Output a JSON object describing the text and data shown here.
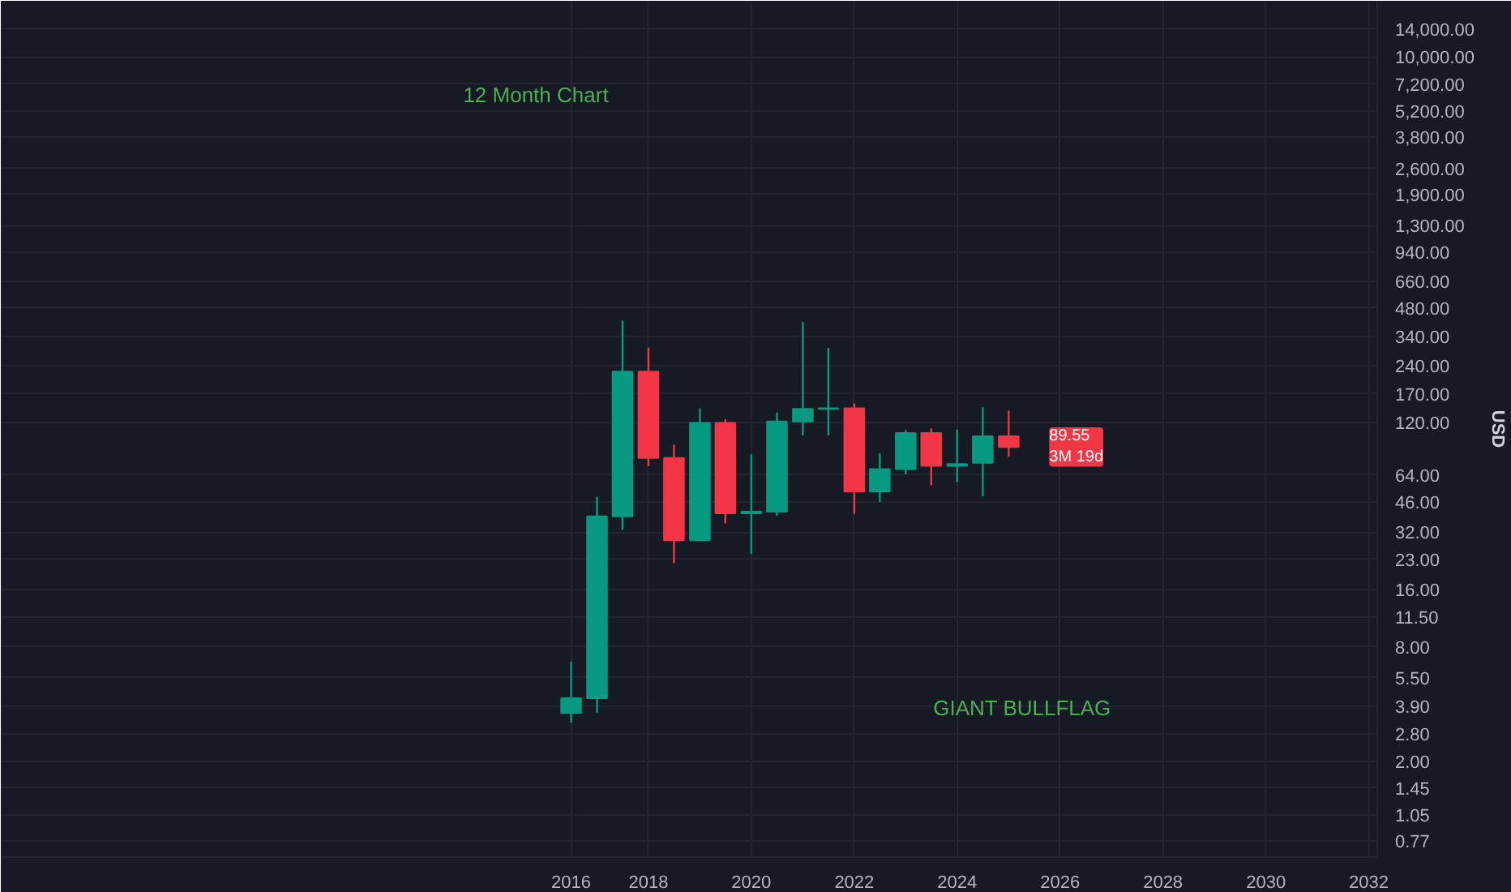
{
  "chart_data": {
    "type": "candlestick",
    "ylabel": "USD",
    "x": [
      "2016-07",
      "2017-01",
      "2017-07",
      "2018-01",
      "2018-07",
      "2019-01",
      "2019-07",
      "2020-01",
      "2020-07",
      "2021-01",
      "2021-07",
      "2022-01",
      "2022-07",
      "2023-01",
      "2023-07",
      "2024-01",
      "2024-07",
      "2025-01"
    ],
    "ohlc": [
      [
        3.6,
        6.7,
        3.2,
        4.3
      ],
      [
        4.3,
        49,
        3.6,
        38.7
      ],
      [
        38.7,
        412,
        33,
        223
      ],
      [
        223,
        298,
        71,
        78.5
      ],
      [
        78.5,
        92,
        22,
        29
      ],
      [
        29,
        143,
        28.7,
        120
      ],
      [
        120,
        125,
        35.5,
        40.2
      ],
      [
        40.2,
        82,
        24.6,
        41
      ],
      [
        41,
        136,
        39,
        122
      ],
      [
        122,
        406,
        103,
        142
      ],
      [
        142,
        297,
        103,
        143
      ],
      [
        143,
        152,
        40,
        52.4
      ],
      [
        52.4,
        83,
        46,
        68.6
      ],
      [
        68.6,
        110,
        64.4,
        106
      ],
      [
        106,
        112,
        56.5,
        71.3
      ],
      [
        71.3,
        110.6,
        58.7,
        73
      ],
      [
        74,
        145,
        49.4,
        102
      ],
      [
        102,
        139,
        79.6,
        89.55
      ]
    ],
    "colors": [
      "#089981",
      "#089981",
      "#089981",
      "#f23645",
      "#f23645",
      "#089981",
      "#f23645",
      "#089981",
      "#089981",
      "#089981",
      "#089981",
      "#f23645",
      "#089981",
      "#089981",
      "#f23645",
      "#089981",
      "#089981",
      "#f23645"
    ],
    "log": "y",
    "xlim": [
      "2005-06",
      "2032-03"
    ],
    "ylim": [
      0.63,
      19700
    ],
    "xticks": [
      {
        "value": "2016-07",
        "label": "2016"
      },
      {
        "value": "2018",
        "label": "2018"
      },
      {
        "value": "2020",
        "label": "2020"
      },
      {
        "value": "2022",
        "label": "2022"
      },
      {
        "value": "2024",
        "label": "2024"
      },
      {
        "value": "2026",
        "label": "2026"
      },
      {
        "value": "2028",
        "label": "2028"
      },
      {
        "value": "2030",
        "label": "2030"
      },
      {
        "value": "2032",
        "label": "2032"
      }
    ],
    "yticks": [
      {
        "value": 0.77,
        "label": "0.77"
      },
      {
        "value": 1.05,
        "label": "1.05"
      },
      {
        "value": 1.45,
        "label": "1.45"
      },
      {
        "value": 2,
        "label": "2.00"
      },
      {
        "value": 2.8,
        "label": "2.80"
      },
      {
        "value": 3.9,
        "label": "3.90"
      },
      {
        "value": 5.5,
        "label": "5.50"
      },
      {
        "value": 8,
        "label": "8.00"
      },
      {
        "value": 11.5,
        "label": "11.50"
      },
      {
        "value": 16,
        "label": "16.00"
      },
      {
        "value": 23,
        "label": "23.00"
      },
      {
        "value": 32,
        "label": "32.00"
      },
      {
        "value": 46,
        "label": "46.00"
      },
      {
        "value": 64,
        "label": "64.00"
      },
      {
        "value": 120,
        "label": "120.00"
      },
      {
        "value": 170,
        "label": "170.00"
      },
      {
        "value": 240,
        "label": "240.00"
      },
      {
        "value": 340,
        "label": "340.00"
      },
      {
        "value": 480,
        "label": "480.00"
      },
      {
        "value": 660,
        "label": "660.00"
      },
      {
        "value": 940,
        "label": "940.00"
      },
      {
        "value": 1300,
        "label": "1,300.00"
      },
      {
        "value": 1900,
        "label": "1,900.00"
      },
      {
        "value": 2600,
        "label": "2,600.00"
      },
      {
        "value": 3800,
        "label": "3,800.00"
      },
      {
        "value": 5200,
        "label": "5,200.00"
      },
      {
        "value": 7200,
        "label": "7,200.00"
      },
      {
        "value": 10000,
        "label": "10,000.00"
      },
      {
        "value": 14000,
        "label": "14,000.00"
      }
    ],
    "grid": true,
    "annotations": [
      "12 Month Chart",
      "GIANT BULLFLAG",
      {
        "text": "89.55\n3M 19d",
        "y": 89.55
      }
    ]
  }
}
